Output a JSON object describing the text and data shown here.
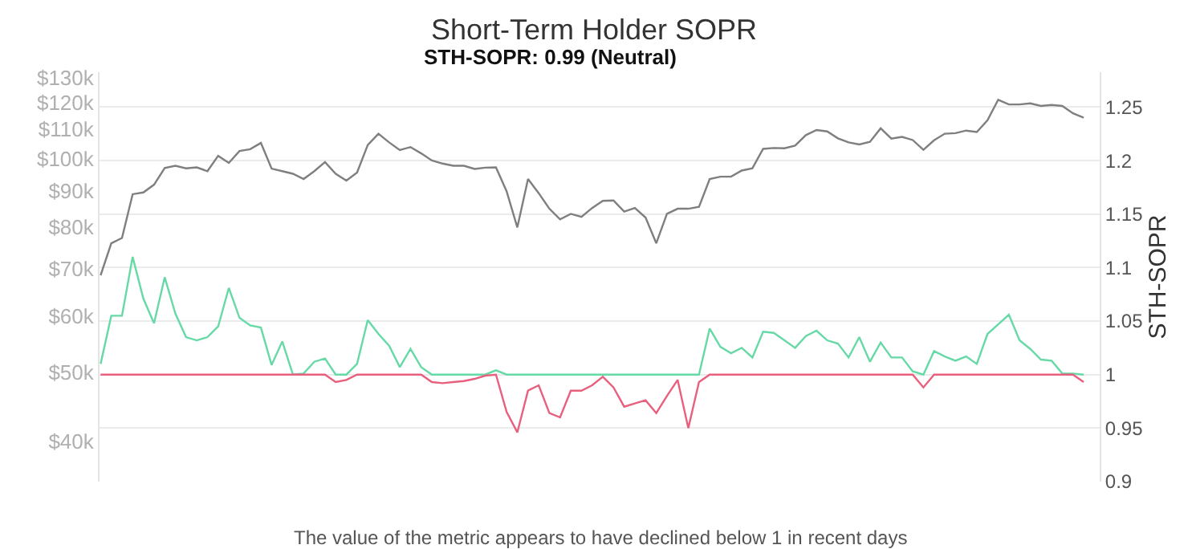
{
  "chart_data": {
    "type": "line",
    "title": "Short-Term Holder SOPR",
    "y2label": "STH-SOPR",
    "annotations": [
      "STH-SOPR: 0.99 (Neutral)",
      "The value of the metric appears to have declined below 1 in recent days"
    ],
    "categories": [
      null,
      null,
      null,
      null,
      null,
      null,
      null,
      null,
      null,
      null,
      null,
      null,
      null,
      null,
      null,
      null,
      null,
      null,
      null,
      null,
      null,
      null,
      null,
      null,
      null,
      null,
      null,
      null,
      null,
      null,
      null,
      null,
      null,
      null,
      null,
      null,
      null,
      null,
      null,
      null,
      null,
      null,
      null,
      null,
      null,
      null,
      null,
      null,
      null,
      null,
      null,
      null,
      null,
      null,
      null,
      null,
      null,
      null,
      null,
      null,
      null,
      null,
      null,
      null,
      null,
      null,
      null,
      null,
      null,
      null,
      null,
      null,
      null,
      null,
      null,
      null,
      null,
      null,
      null,
      null,
      null,
      null,
      null,
      null,
      null,
      null,
      null,
      null,
      null,
      null,
      null,
      null,
      null
    ],
    "series": [
      {
        "color": "#7f7f7f",
        "values": [
          68500,
          76000,
          77300,
          89100,
          89600,
          91900,
          97000,
          97700,
          96900,
          97200,
          96000,
          100900,
          98600,
          102500,
          103100,
          105200,
          96800,
          96000,
          95200,
          93600,
          96000,
          98900,
          95200,
          93100,
          95600,
          104500,
          108400,
          105400,
          102800,
          103800,
          101700,
          99400,
          98400,
          97700,
          97700,
          96700,
          97100,
          97200,
          89900,
          80000,
          93600,
          89400,
          85000,
          82100,
          83600,
          82800,
          85200,
          87200,
          87300,
          84200,
          85200,
          82600,
          76000,
          83600,
          85000,
          85000,
          85500,
          93600,
          94300,
          94300,
          96200,
          96900,
          103200,
          103500,
          103400,
          104300,
          107900,
          109700,
          109200,
          106800,
          105400,
          104700,
          105600,
          110300,
          106700,
          107300,
          106200,
          102900,
          106100,
          108400,
          108600,
          109500,
          109000,
          113200,
          121000,
          119200,
          119200,
          119600,
          118600,
          119000,
          118600,
          115800,
          114200
        ]
      },
      {
        "color": "#66d9a6",
        "axis": "y2",
        "values": [
          1.01,
          1.055,
          1.055,
          1.11,
          1.071,
          1.048,
          1.091,
          1.057,
          1.035,
          1.032,
          1.035,
          1.045,
          1.081,
          1.053,
          1.046,
          1.044,
          1.009,
          1.031,
          1,
          1.001,
          1.012,
          1.015,
          1,
          1,
          1.01,
          1.051,
          1.038,
          1.027,
          1.007,
          1.024,
          1.007,
          1,
          1,
          1,
          1,
          1,
          1,
          1.004,
          1,
          1,
          1,
          1,
          1,
          1,
          1,
          1,
          1,
          1,
          1,
          1,
          1,
          1,
          1,
          1,
          1,
          1,
          1,
          1.043,
          1.026,
          1.02,
          1.025,
          1.016,
          1.04,
          1.039,
          1.032,
          1.025,
          1.036,
          1.041,
          1.032,
          1.029,
          1.016,
          1.035,
          1.012,
          1.03,
          1.016,
          1.016,
          1.003,
          1,
          1.022,
          1.017,
          1.013,
          1.017,
          1.01,
          1.038,
          1.047,
          1.056,
          1.032,
          1.024,
          1.014,
          1.013,
          1.001,
          1.001,
          1
        ]
      },
      {
        "color": "#e8607e",
        "axis": "y2",
        "values": [
          1,
          1,
          1,
          1,
          1,
          1,
          1,
          1,
          1,
          1,
          1,
          1,
          1,
          1,
          1,
          1,
          1,
          1,
          1,
          1,
          1,
          1,
          0.993,
          0.995,
          1,
          1,
          1,
          1,
          1,
          1,
          1,
          0.993,
          0.992,
          0.993,
          0.994,
          0.996,
          0.999,
          1,
          0.965,
          0.946,
          0.985,
          0.99,
          0.964,
          0.96,
          0.985,
          0.985,
          0.99,
          0.998,
          0.988,
          0.97,
          0.973,
          0.976,
          0.964,
          0.98,
          0.995,
          0.95,
          0.993,
          1,
          1,
          1,
          1,
          1,
          1,
          1,
          1,
          1,
          1,
          1,
          1,
          1,
          1,
          1,
          1,
          1,
          1,
          1,
          1,
          0.988,
          1,
          1,
          1,
          1,
          1,
          1,
          1,
          1,
          1,
          1,
          1,
          1,
          1,
          1,
          0.993
        ]
      }
    ],
    "log": "y",
    "ylim": [
      35100,
      132300
    ],
    "yticks": [
      {
        "value": 40000,
        "label": "$40k"
      },
      {
        "value": 50000,
        "label": "$50k"
      },
      {
        "value": 60000,
        "label": "$60k"
      },
      {
        "value": 70000,
        "label": "$70k"
      },
      {
        "value": 80000,
        "label": "$80k"
      },
      {
        "value": 90000,
        "label": "$90k"
      },
      {
        "value": 100000,
        "label": "$100k"
      },
      {
        "value": 110000,
        "label": "$110k"
      },
      {
        "value": 120000,
        "label": "$120k"
      },
      {
        "value": 130000,
        "label": "$130k"
      }
    ],
    "y2lim": [
      0.9,
      1.2826
    ],
    "y2ticks": [
      0.9,
      0.95,
      1,
      1.05,
      1.1,
      1.15,
      1.2,
      1.25
    ],
    "grid": "y",
    "line_style": "solid"
  }
}
